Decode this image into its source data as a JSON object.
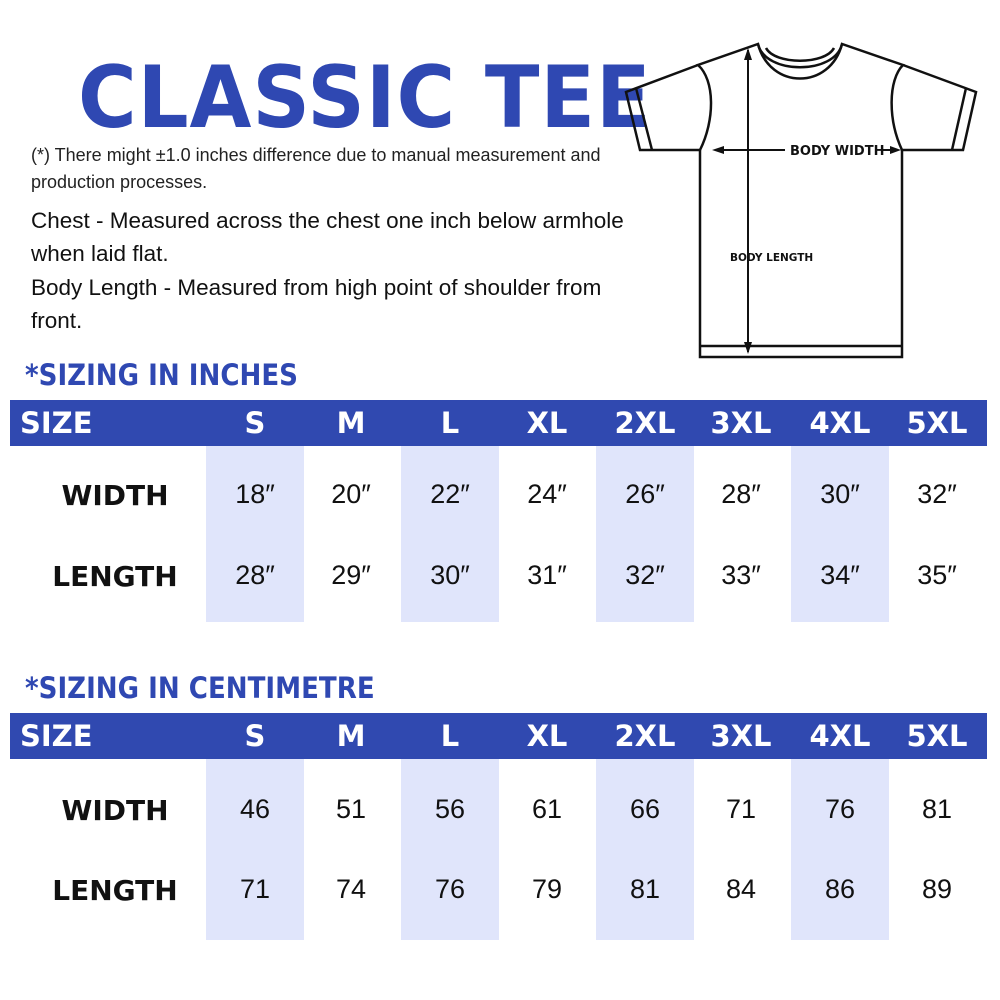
{
  "title": "CLASSIC TEE",
  "note": "(*) There might ±1.0 inches difference due to manual measurement and production processes.",
  "chest_desc": "Chest - Measured across the chest one inch below armhole when laid flat.",
  "length_desc": "Body Length - Measured from high point of shoulder from front.",
  "diagram": {
    "width_label": "BODY WIDTH",
    "length_label": "BODY LENGTH"
  },
  "colors": {
    "brand_blue": "#3049b0",
    "column_shade": "#e0e5fb"
  },
  "tables": [
    {
      "heading": "*SIZING IN INCHES",
      "size_label": "SIZE",
      "sizes": [
        "S",
        "M",
        "L",
        "XL",
        "2XL",
        "3XL",
        "4XL",
        "5XL"
      ],
      "rows": [
        {
          "label": "WIDTH",
          "values": [
            "18″",
            "20″",
            "22″",
            "24″",
            "26″",
            "28″",
            "30″",
            "32″"
          ]
        },
        {
          "label": "LENGTH",
          "values": [
            "28″",
            "29″",
            "30″",
            "31″",
            "32″",
            "33″",
            "34″",
            "35″"
          ]
        }
      ]
    },
    {
      "heading": "*SIZING IN CENTIMETRE",
      "size_label": "SIZE",
      "sizes": [
        "S",
        "M",
        "L",
        "XL",
        "2XL",
        "3XL",
        "4XL",
        "5XL"
      ],
      "rows": [
        {
          "label": "WIDTH",
          "values": [
            "46",
            "51",
            "56",
            "61",
            "66",
            "71",
            "76",
            "81"
          ]
        },
        {
          "label": "LENGTH",
          "values": [
            "71",
            "74",
            "76",
            "79",
            "81",
            "84",
            "86",
            "89"
          ]
        }
      ]
    }
  ]
}
